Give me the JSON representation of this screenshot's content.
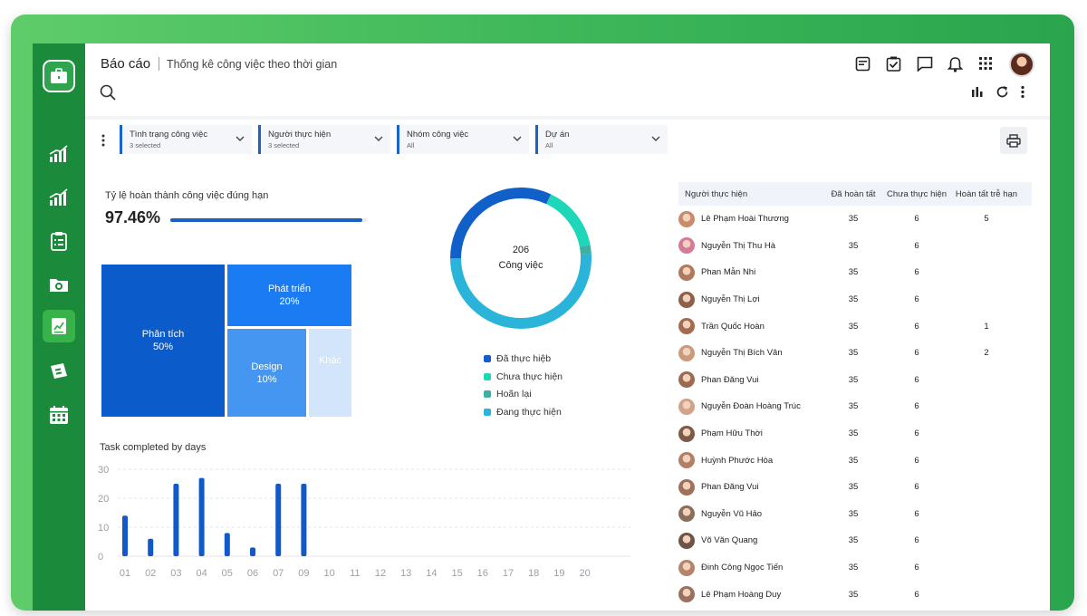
{
  "header": {
    "title": "Báo cáo",
    "subtitle": "Thống kê công việc theo thời gian"
  },
  "header_icons": [
    "notes-icon",
    "task-check-icon",
    "chat-icon",
    "bell-icon",
    "apps-grid-icon"
  ],
  "tools": [
    "bar-chart-icon",
    "refresh-icon",
    "more-vertical-icon"
  ],
  "sidebar": {
    "items": [
      "chart-growth-icon",
      "chart-growth-icon",
      "clipboard-list-icon",
      "folder-icon",
      "report-chart-icon",
      "ticket-icon",
      "calendar-icon"
    ],
    "active_index": 4
  },
  "filters": [
    {
      "label": "Tình trạng công việc",
      "value": "3 selected"
    },
    {
      "label": "Người thực hiện",
      "value": "3 selected"
    },
    {
      "label": "Nhóm công việc",
      "value": "All"
    },
    {
      "label": "Dự án",
      "value": "All"
    }
  ],
  "kpi": {
    "label": "Tỷ lệ hoàn thành công việc đúng hạn",
    "value": "97.46%",
    "fraction": 0.9746
  },
  "treemap": [
    {
      "label": "Phân tích",
      "value": "50%"
    },
    {
      "label": "Phát triển",
      "value": "20%"
    },
    {
      "label": "Design",
      "value": "10%"
    },
    {
      "label": "Khác",
      "value": ""
    }
  ],
  "donut": {
    "total": "206",
    "unit": "Công việc",
    "segments": [
      {
        "name": "Đã thực hiệb",
        "fraction": 0.32,
        "color": "#1160c9"
      },
      {
        "name": "Chưa thực hiện",
        "fraction": 0.15,
        "color": "#1ed6b8"
      },
      {
        "name": "Hoãn lại",
        "fraction": 0.02,
        "color": "#3db0a4"
      },
      {
        "name": "Đang thực hiện",
        "fraction": 0.51,
        "color": "#2bb4d9"
      }
    ]
  },
  "chart_data": {
    "type": "bar",
    "title": "Task completed by days",
    "categories": [
      "01",
      "02",
      "03",
      "04",
      "05",
      "06",
      "07",
      "09",
      "10",
      "11",
      "12",
      "13",
      "14",
      "15",
      "16",
      "17",
      "18",
      "19",
      "20"
    ],
    "values": [
      14,
      6,
      25,
      27,
      8,
      3,
      25,
      25,
      0,
      0,
      0,
      0,
      0,
      0,
      0,
      0,
      0,
      0,
      0
    ],
    "ylim": [
      0,
      30
    ],
    "yticks": [
      0,
      10,
      20,
      30
    ],
    "grid": true,
    "color": "#1159c9"
  },
  "table": {
    "columns": [
      "Người thực hiện",
      "Đã hoàn tất",
      "Chưa thực hiện",
      "Hoàn tất trễ hạn"
    ],
    "rows": [
      {
        "name": "Lê Phạm Hoài Thương",
        "done": "35",
        "todo": "6",
        "late": "5"
      },
      {
        "name": "Nguyễn Thị Thu Hà",
        "done": "35",
        "todo": "6",
        "late": ""
      },
      {
        "name": "Phan Mẫn Nhi",
        "done": "35",
        "todo": "6",
        "late": ""
      },
      {
        "name": "Nguyễn Thị Lợi",
        "done": "35",
        "todo": "6",
        "late": ""
      },
      {
        "name": "Trần Quốc Hoàn",
        "done": "35",
        "todo": "6",
        "late": "1"
      },
      {
        "name": "Nguyễn Thị Bích Vân",
        "done": "35",
        "todo": "6",
        "late": "2"
      },
      {
        "name": "Phan Đăng Vui",
        "done": "35",
        "todo": "6",
        "late": ""
      },
      {
        "name": "Nguyễn Đoàn Hoàng Trúc",
        "done": "35",
        "todo": "6",
        "late": ""
      },
      {
        "name": "Phạm Hữu Thời",
        "done": "35",
        "todo": "6",
        "late": ""
      },
      {
        "name": "Huỳnh Phước Hòa",
        "done": "35",
        "todo": "6",
        "late": ""
      },
      {
        "name": "Phan Đăng Vui",
        "done": "35",
        "todo": "6",
        "late": ""
      },
      {
        "name": "Nguyễn Vũ Hảo",
        "done": "35",
        "todo": "6",
        "late": ""
      },
      {
        "name": "Võ Văn Quang",
        "done": "35",
        "todo": "6",
        "late": ""
      },
      {
        "name": "Đinh Công Ngọc Tiến",
        "done": "35",
        "todo": "6",
        "late": ""
      },
      {
        "name": "Lê Phạm Hoàng Duy",
        "done": "35",
        "todo": "6",
        "late": ""
      }
    ]
  }
}
